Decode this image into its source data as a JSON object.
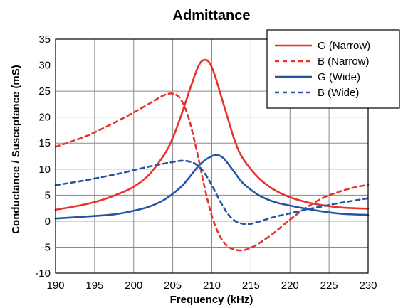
{
  "chart_data": {
    "type": "line",
    "title": "Admittance",
    "xlabel": "Frequency (kHz)",
    "ylabel": "Conductance / Susceptance  (mS)",
    "xlim": [
      190,
      230
    ],
    "ylim": [
      -10,
      35
    ],
    "xticks": [
      "190",
      "195",
      "200",
      "205",
      "210",
      "215",
      "220",
      "225",
      "230"
    ],
    "yticks": [
      "-10",
      "-5",
      "0",
      "5",
      "10",
      "15",
      "20",
      "25",
      "30",
      "35"
    ],
    "grid": true,
    "legend_position": "top-right",
    "series": [
      {
        "name": "G (Narrow)",
        "color": "#e8322e",
        "dash": "solid",
        "x": [
          190,
          192,
          194,
          196,
          198,
          200,
          202,
          204,
          205,
          206,
          207,
          208,
          208.5,
          209,
          209.5,
          210,
          210.5,
          211,
          212,
          213,
          214,
          216,
          218,
          220,
          222,
          224,
          226,
          228,
          230
        ],
        "y": [
          2.2,
          2.7,
          3.3,
          4.1,
          5.2,
          6.6,
          9.0,
          13.0,
          16.0,
          20.0,
          24.5,
          28.8,
          30.4,
          31.0,
          30.8,
          29.6,
          27.5,
          25.0,
          20.0,
          15.2,
          12.0,
          8.3,
          6.0,
          4.6,
          3.7,
          3.1,
          2.7,
          2.5,
          2.4
        ]
      },
      {
        "name": "B (Narrow)",
        "color": "#e8322e",
        "dash": "dashed",
        "x": [
          190,
          192,
          194,
          196,
          198,
          200,
          202,
          203,
          204,
          205,
          206,
          207,
          208,
          209,
          210,
          211,
          212,
          213,
          214,
          215,
          216,
          218,
          220,
          222,
          224,
          226,
          228,
          230
        ],
        "y": [
          14.3,
          15.3,
          16.4,
          17.8,
          19.3,
          20.9,
          22.6,
          23.5,
          24.3,
          24.5,
          23.5,
          20.0,
          14.0,
          7.0,
          1.0,
          -2.8,
          -4.8,
          -5.5,
          -5.6,
          -5.1,
          -4.3,
          -2.2,
          0.3,
          2.5,
          4.3,
          5.5,
          6.4,
          7.0
        ]
      },
      {
        "name": "G (Wide)",
        "color": "#2454a4",
        "dash": "solid",
        "x": [
          190,
          192,
          194,
          196,
          198,
          200,
          202,
          204,
          206,
          207,
          208,
          209,
          210,
          210.5,
          211,
          211.5,
          212,
          213,
          214,
          216,
          218,
          220,
          222,
          224,
          226,
          228,
          230
        ],
        "y": [
          0.5,
          0.7,
          0.9,
          1.1,
          1.4,
          2.0,
          2.8,
          4.2,
          6.5,
          8.2,
          10.1,
          11.6,
          12.5,
          12.7,
          12.6,
          12.1,
          11.2,
          9.2,
          7.3,
          5.0,
          3.7,
          3.0,
          2.4,
          1.9,
          1.5,
          1.3,
          1.2
        ]
      },
      {
        "name": "B (Wide)",
        "color": "#2454a4",
        "dash": "dashed",
        "x": [
          190,
          192,
          194,
          196,
          198,
          200,
          202,
          204,
          206,
          207,
          208,
          209,
          210,
          211,
          212,
          213,
          214,
          215,
          216,
          218,
          220,
          222,
          224,
          226,
          228,
          230
        ],
        "y": [
          6.9,
          7.4,
          7.9,
          8.5,
          9.1,
          9.8,
          10.5,
          11.1,
          11.6,
          11.5,
          10.9,
          9.4,
          6.9,
          4.0,
          1.5,
          0.0,
          -0.5,
          -0.5,
          -0.1,
          0.8,
          1.5,
          2.2,
          2.8,
          3.4,
          3.9,
          4.4
        ]
      }
    ]
  }
}
